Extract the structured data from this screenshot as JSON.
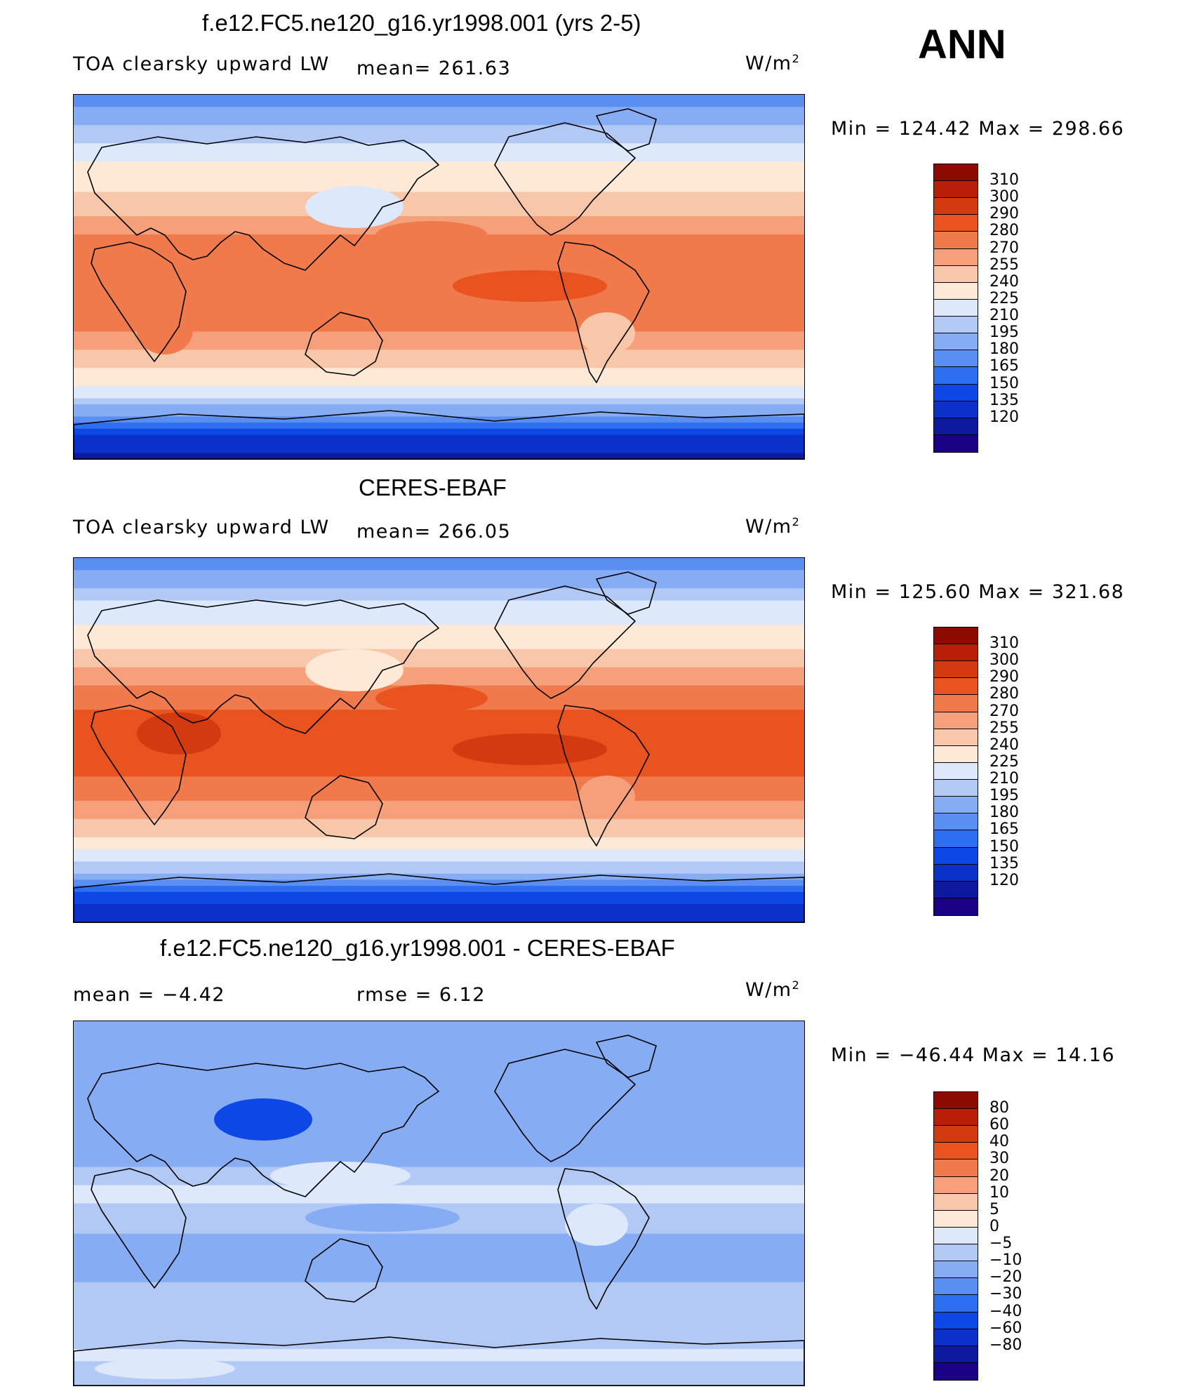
{
  "season": "ANN",
  "units_main": "W/m",
  "units_sup": "2",
  "chart_data": [
    {
      "type": "heatmap",
      "title": "f.e12.FC5.ne120_g16.yr1998.001 (yrs 2-5)",
      "variable": "TOA clearsky upward LW",
      "mean_text": "mean= 261.63",
      "minmax_text": "Min  =  124.42  Max  =  298.66",
      "min": 124.42,
      "max": 298.66,
      "mean": 261.63,
      "colorbar_levels": [
        "310",
        "300",
        "290",
        "280",
        "270",
        "255",
        "240",
        "225",
        "210",
        "195",
        "180",
        "165",
        "150",
        "135",
        "120"
      ],
      "zonal_profile": [
        {
          "lat": 90,
          "v": 180
        },
        {
          "lat": 75,
          "v": 210
        },
        {
          "lat": 60,
          "v": 235
        },
        {
          "lat": 45,
          "v": 252
        },
        {
          "lat": 30,
          "v": 270
        },
        {
          "lat": 15,
          "v": 285
        },
        {
          "lat": 0,
          "v": 288
        },
        {
          "lat": -15,
          "v": 290
        },
        {
          "lat": -30,
          "v": 278
        },
        {
          "lat": -45,
          "v": 255
        },
        {
          "lat": -60,
          "v": 225
        },
        {
          "lat": -70,
          "v": 185
        },
        {
          "lat": -80,
          "v": 145
        },
        {
          "lat": -90,
          "v": 130
        }
      ]
    },
    {
      "type": "heatmap",
      "title": "CERES-EBAF",
      "variable": "TOA clearsky upward LW",
      "mean_text": "mean= 266.05",
      "minmax_text": "Min  =  125.60  Max  =  321.68",
      "min": 125.6,
      "max": 321.68,
      "mean": 266.05,
      "colorbar_levels": [
        "310",
        "300",
        "290",
        "280",
        "270",
        "255",
        "240",
        "225",
        "210",
        "195",
        "180",
        "165",
        "150",
        "135",
        "120"
      ],
      "zonal_profile": [
        {
          "lat": 90,
          "v": 185
        },
        {
          "lat": 75,
          "v": 212
        },
        {
          "lat": 60,
          "v": 238
        },
        {
          "lat": 45,
          "v": 256
        },
        {
          "lat": 30,
          "v": 278
        },
        {
          "lat": 15,
          "v": 290
        },
        {
          "lat": 0,
          "v": 292
        },
        {
          "lat": -15,
          "v": 293
        },
        {
          "lat": -30,
          "v": 282
        },
        {
          "lat": -45,
          "v": 258
        },
        {
          "lat": -60,
          "v": 228
        },
        {
          "lat": -70,
          "v": 190
        },
        {
          "lat": -80,
          "v": 150
        },
        {
          "lat": -90,
          "v": 135
        }
      ]
    },
    {
      "type": "heatmap",
      "title": "f.e12.FC5.ne120_g16.yr1998.001 - CERES-EBAF",
      "variable": "",
      "mean_text": "mean =    −4.42",
      "rmse_text": "rmse =     6.12",
      "minmax_text": "Min  =  −46.44  Max  =    14.16",
      "min": -46.44,
      "max": 14.16,
      "mean": -4.42,
      "rmse": 6.12,
      "colorbar_levels": [
        "80",
        "60",
        "40",
        "30",
        "20",
        "10",
        "5",
        "0",
        "−5",
        "−10",
        "−20",
        "−30",
        "−40",
        "−60",
        "−80"
      ],
      "zonal_profile": [
        {
          "lat": 90,
          "v": -5
        },
        {
          "lat": 60,
          "v": -7
        },
        {
          "lat": 30,
          "v": -8
        },
        {
          "lat": 15,
          "v": -4
        },
        {
          "lat": 5,
          "v": 2
        },
        {
          "lat": -5,
          "v": -3
        },
        {
          "lat": -25,
          "v": -7
        },
        {
          "lat": -45,
          "v": -4
        },
        {
          "lat": -60,
          "v": -3
        },
        {
          "lat": -75,
          "v": 1
        },
        {
          "lat": -90,
          "v": -4
        }
      ]
    }
  ],
  "colors": {
    "abs_scale": [
      "#1a0084",
      "#0d1aa0",
      "#0a31c8",
      "#0d47e6",
      "#2e6ef0",
      "#5a8ff2",
      "#86acf4",
      "#b2c9f6",
      "#dde8fb",
      "#fde9d6",
      "#f8c6a8",
      "#f5a07a",
      "#f07a4c",
      "#e8531f",
      "#d43a0f",
      "#b81f06",
      "#8c0a00"
    ],
    "diff_scale": [
      "#1a0084",
      "#0d1aa0",
      "#0a31c8",
      "#0d47e6",
      "#2e6ef0",
      "#5a8ff2",
      "#86acf4",
      "#b2c9f6",
      "#dde8fb",
      "#fde9d6",
      "#f8c6a8",
      "#f5a07a",
      "#f07a4c",
      "#e8531f",
      "#d43a0f",
      "#b81f06",
      "#8c0a00"
    ]
  }
}
